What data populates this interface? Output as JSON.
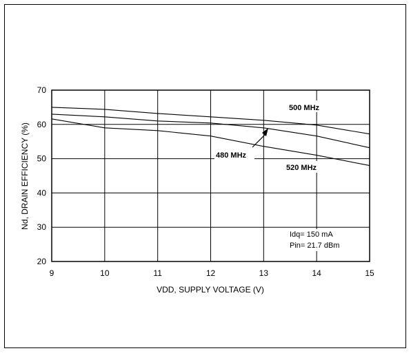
{
  "chart_data": {
    "type": "line",
    "title": "",
    "xlabel": "VDD, SUPPLY VOLTAGE (V)",
    "ylabel": "Nd, DRAIN EFFICIENCY (%)",
    "xlim": [
      9,
      15
    ],
    "ylim": [
      20,
      70
    ],
    "x_ticks": [
      9,
      10,
      11,
      12,
      13,
      14,
      15
    ],
    "y_ticks": [
      20,
      30,
      40,
      50,
      60,
      70
    ],
    "grid": true,
    "series": [
      {
        "name": "500 MHz",
        "x": [
          9,
          10,
          11,
          12,
          13,
          14,
          15
        ],
        "y": [
          65.0,
          64.4,
          63.2,
          62.2,
          61.2,
          59.8,
          57.2
        ]
      },
      {
        "name": "480 MHz",
        "x": [
          9,
          10,
          11,
          12,
          13,
          14,
          15
        ],
        "y": [
          63.0,
          62.2,
          61.0,
          60.4,
          59.0,
          56.6,
          53.2
        ]
      },
      {
        "name": "520 MHz",
        "x": [
          9,
          10,
          11,
          12,
          13,
          14,
          15
        ],
        "y": [
          61.6,
          59.0,
          58.2,
          56.6,
          53.6,
          51.0,
          48.0
        ]
      }
    ],
    "annotations": [
      "Idq= 150 mA",
      "Pin= 21.7 dBm"
    ]
  }
}
